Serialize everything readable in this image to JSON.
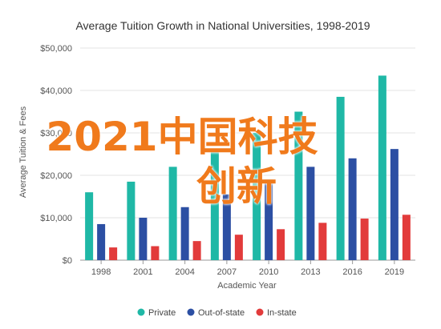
{
  "overlay": {
    "line1": "2021中国科技",
    "line2": "创新"
  },
  "chart_data": {
    "type": "bar",
    "title": "Average Tuition Growth in National Universities, 1998-2019",
    "xlabel": "Academic Year",
    "ylabel": "Average Tuition & Fees",
    "categories": [
      "1998",
      "2001",
      "2004",
      "2007",
      "2010",
      "2013",
      "2016",
      "2019"
    ],
    "ylim": [
      0,
      50000
    ],
    "yticks": [
      0,
      10000,
      20000,
      30000,
      40000,
      50000
    ],
    "ytick_labels": [
      "$0",
      "$10,000",
      "$20,000",
      "$30,000",
      "$40,000",
      "$50,000"
    ],
    "grid": true,
    "legend_position": "bottom",
    "series": [
      {
        "name": "Private",
        "color": "#1fb8a6",
        "values": [
          16000,
          18500,
          22000,
          26000,
          30000,
          35000,
          38500,
          43500
        ]
      },
      {
        "name": "Out-of-state",
        "color": "#2c4fa3",
        "values": [
          8500,
          10000,
          12500,
          15500,
          19000,
          22000,
          24000,
          26200
        ]
      },
      {
        "name": "In-state",
        "color": "#e23b3b",
        "values": [
          3000,
          3300,
          4500,
          6000,
          7300,
          8800,
          9800,
          10700
        ]
      }
    ]
  }
}
